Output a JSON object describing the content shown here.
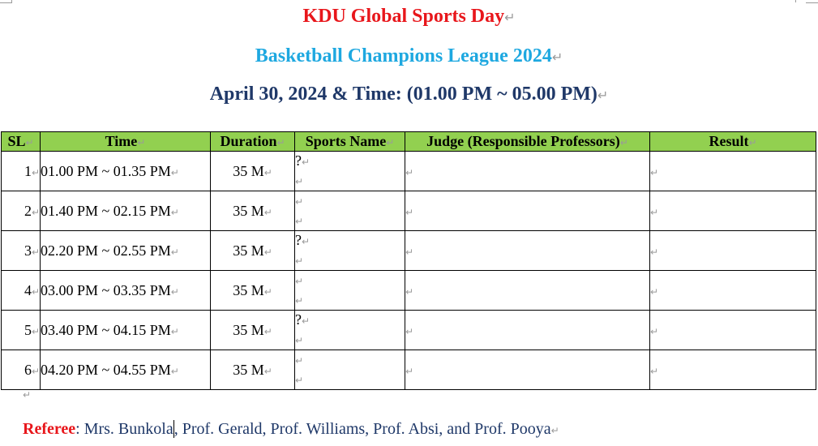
{
  "header": {
    "title": "KDU Global Sports Day",
    "subtitle": "Basketball Champions League 2024",
    "date_line": "April 30, 2024 & Time: (01.00 PM ~ 05.00 PM)"
  },
  "para_mark": "↵",
  "table": {
    "columns": [
      "SL",
      "Time",
      "Duration",
      "Sports Name",
      "Judge (Responsible Professors)",
      "Result"
    ],
    "rows": [
      {
        "sl": "1",
        "time": "01.00 PM ~ 01.35 PM",
        "duration": "35 M",
        "sport_line1": "?",
        "sport_line2": "",
        "judge": "",
        "result": ""
      },
      {
        "sl": "2",
        "time": "01.40 PM ~ 02.15 PM",
        "duration": "35 M",
        "sport_line1": "",
        "sport_line2": "",
        "judge": "",
        "result": ""
      },
      {
        "sl": "3",
        "time": "02.20 PM ~ 02.55 PM",
        "duration": "35 M",
        "sport_line1": "?",
        "sport_line2": "",
        "judge": "",
        "result": ""
      },
      {
        "sl": "4",
        "time": "03.00 PM ~ 03.35 PM",
        "duration": "35 M",
        "sport_line1": "",
        "sport_line2": "",
        "judge": "",
        "result": ""
      },
      {
        "sl": "5",
        "time": "03.40 PM ~ 04.15 PM",
        "duration": "35 M",
        "sport_line1": "?",
        "sport_line2": "",
        "judge": "",
        "result": ""
      },
      {
        "sl": "6",
        "time": "04.20 PM ~ 04.55 PM",
        "duration": "35 M",
        "sport_line1": "",
        "sport_line2": "",
        "judge": "",
        "result": ""
      }
    ]
  },
  "referee": {
    "label": "Referee",
    "names_before_cursor": ": Mrs. Bunkola",
    "names_after_cursor": ", Prof. Gerald, Prof. Williams, Prof. Absi, and Prof. Pooya"
  },
  "colors": {
    "title": "#e8161b",
    "subtitle": "#1ea8e0",
    "date_line": "#1f3868",
    "header_fill": "#92d050",
    "referee_label": "#e8161b",
    "referee_text": "#1f3868",
    "para_mark": "#9a9a9a"
  }
}
